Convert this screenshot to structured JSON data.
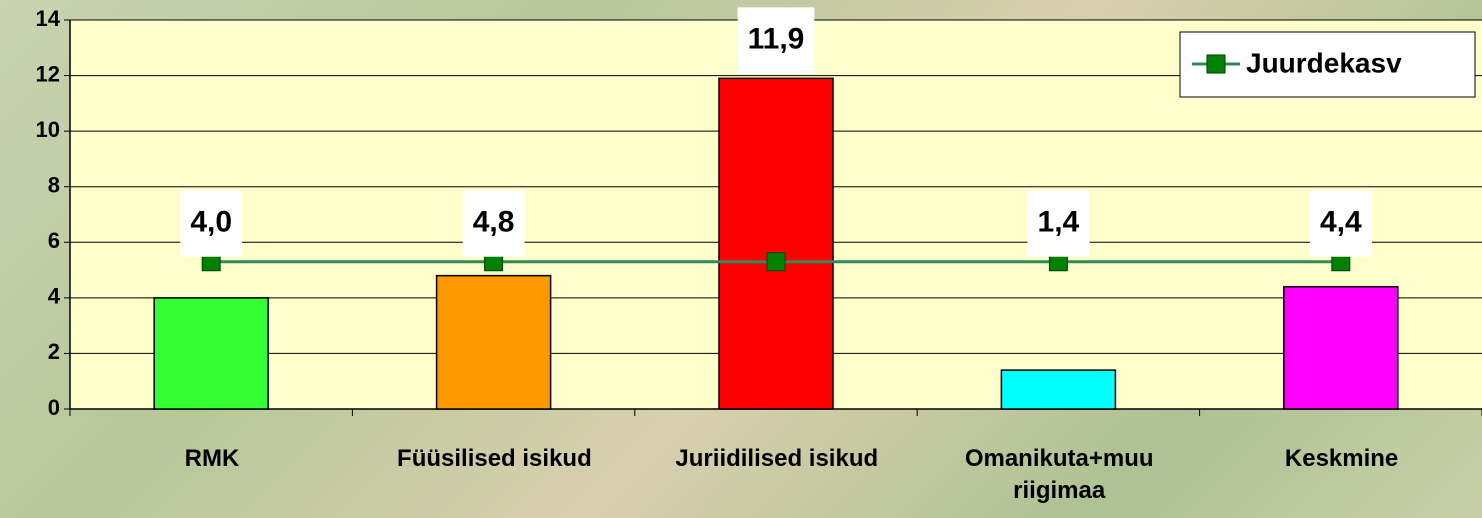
{
  "chart_data": {
    "type": "bar",
    "categories": [
      "RMK",
      "Füüsilised isikud",
      "Juriidilised isikud",
      "Omanikuta+muu riigimaa",
      "Keskmine"
    ],
    "values": [
      4.0,
      4.8,
      11.9,
      1.4,
      4.4
    ],
    "value_labels": [
      "4,0",
      "4,8",
      "11,9",
      "1,4",
      "4,4"
    ],
    "colors": [
      "#33ff33",
      "#ff9900",
      "#ff0000",
      "#00ffff",
      "#ff00ff"
    ],
    "line_series": {
      "name": "Juurdekasv",
      "type": "line",
      "color": "#2e8b57",
      "marker_color": "#008000",
      "values": [
        5.3,
        5.3,
        5.3,
        5.3,
        5.3
      ]
    },
    "ylim": [
      0,
      14
    ],
    "yticks": [
      0,
      2,
      4,
      6,
      8,
      10,
      12,
      14
    ],
    "grid": true,
    "legend": "top-right"
  }
}
